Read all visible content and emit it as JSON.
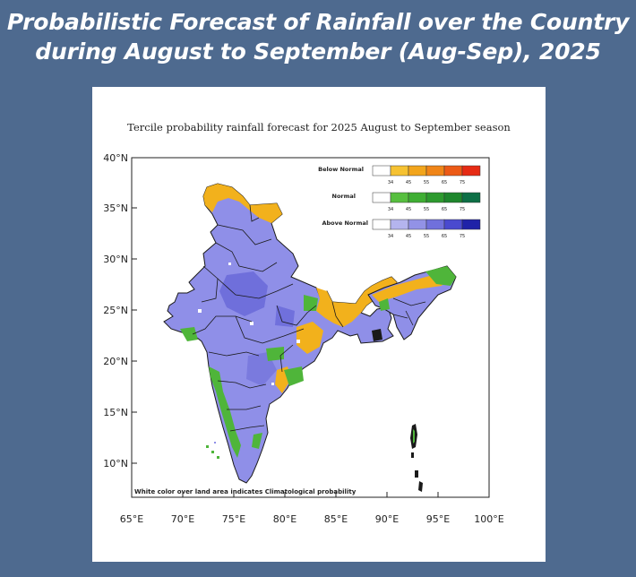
{
  "headline": {
    "line1": "Probabilistic Forecast of Rainfall over the Country",
    "line2": "during August to September (Aug-Sep), 2025"
  },
  "map": {
    "title": "Tercile probability rainfall forecast for 2025 August to September season",
    "lat_ticks": [
      "40°N",
      "35°N",
      "30°N",
      "25°N",
      "20°N",
      "15°N",
      "10°N"
    ],
    "lon_ticks": [
      "65°E",
      "70°E",
      "75°E",
      "80°E",
      "85°E",
      "90°E",
      "95°E",
      "100°E"
    ],
    "footnote": "White color over land area indicates Climatological probability",
    "colors": {
      "above_normal_main": "#8f8fe8",
      "below_normal_main": "#f2b11c",
      "normal_main": "#4fb53a",
      "boundary": "#1a1a1a"
    }
  },
  "legend": {
    "below_normal": {
      "label": "Below Normal",
      "ticks": [
        "34",
        "45",
        "55",
        "65",
        "75"
      ],
      "colors": [
        "#ffffff",
        "#f6c232",
        "#f2a51c",
        "#f08518",
        "#ec5a16",
        "#e62b14"
      ]
    },
    "normal": {
      "label": "Normal",
      "ticks": [
        "34",
        "45",
        "55",
        "65",
        "75"
      ],
      "colors": [
        "#ffffff",
        "#57bf3f",
        "#3fae33",
        "#2d9a2e",
        "#1e862c",
        "#0d6f46"
      ]
    },
    "above_normal": {
      "label": "Above Normal",
      "ticks": [
        "34",
        "45",
        "55",
        "65",
        "75"
      ],
      "colors": [
        "#ffffff",
        "#b4b4ee",
        "#9292e6",
        "#7070dc",
        "#4a4acf",
        "#1f22a8"
      ]
    }
  }
}
